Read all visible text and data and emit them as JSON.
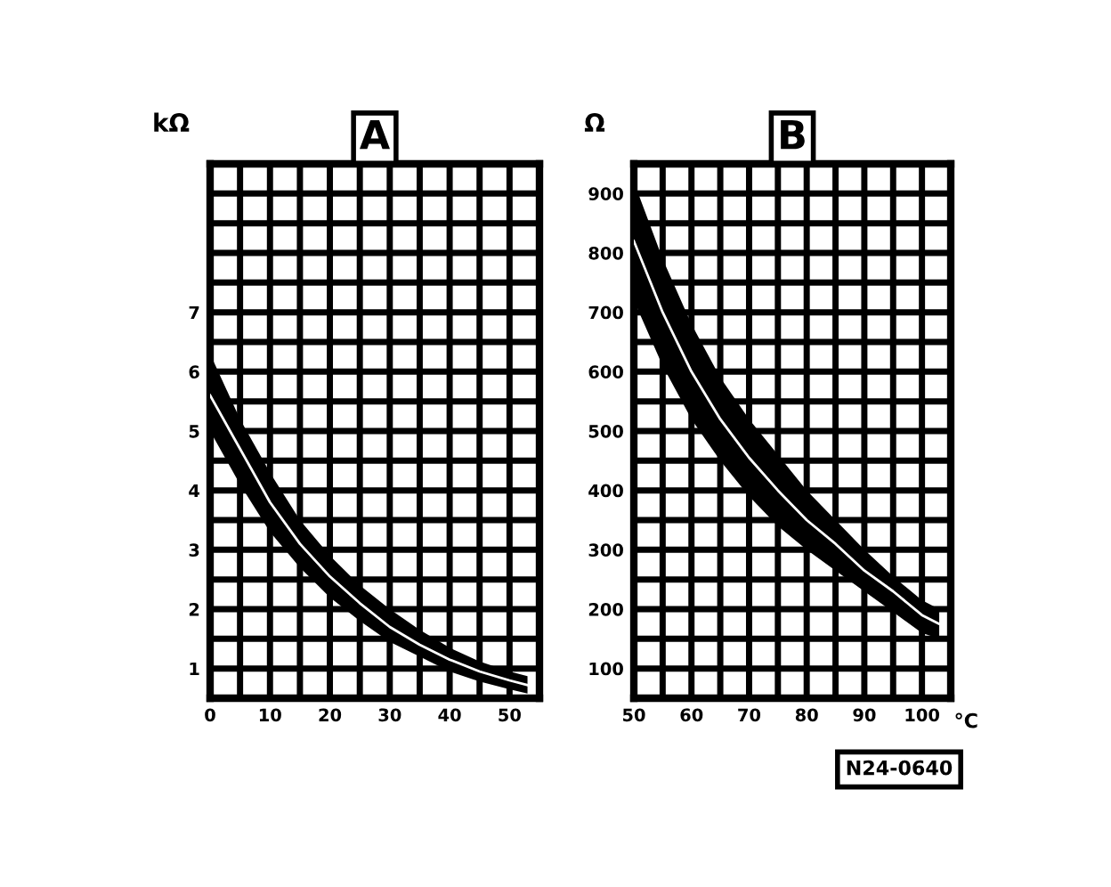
{
  "chart_data": [
    {
      "type": "line",
      "title": "A",
      "ylabel": "kΩ",
      "x": [
        0,
        5,
        10,
        15,
        20,
        25,
        30,
        35,
        40,
        45,
        50,
        53
      ],
      "series": [
        {
          "color": "#ffffff",
          "values": [
            5.6,
            4.7,
            3.8,
            3.1,
            2.55,
            2.1,
            1.7,
            1.4,
            1.15,
            0.95,
            0.8,
            0.72
          ],
          "lower": [
            5.0,
            4.1,
            3.3,
            2.7,
            2.2,
            1.8,
            1.45,
            1.2,
            0.95,
            0.78,
            0.65,
            0.58
          ],
          "upper": [
            6.3,
            5.2,
            4.3,
            3.5,
            2.9,
            2.4,
            2.0,
            1.65,
            1.35,
            1.12,
            0.95,
            0.87
          ]
        }
      ],
      "xlim": [
        0,
        55
      ],
      "ylim": [
        0.5,
        9.5
      ],
      "xticks": [
        0,
        {
          "value": 5,
          "label": null
        },
        10,
        {
          "value": 15,
          "label": null
        },
        20,
        {
          "value": 25,
          "label": null
        },
        30,
        {
          "value": 35,
          "label": null
        },
        40,
        {
          "value": 45,
          "label": null
        },
        50,
        {
          "value": 55,
          "label": null
        }
      ],
      "yticks": [
        {
          "value": 0.5,
          "label": null
        },
        1,
        {
          "value": 1.5,
          "label": null
        },
        2,
        {
          "value": 2.5,
          "label": null
        },
        3,
        {
          "value": 3.5,
          "label": null
        },
        4,
        {
          "value": 4.5,
          "label": null
        },
        5,
        {
          "value": 5.5,
          "label": null
        },
        6,
        {
          "value": 6.5,
          "label": null
        },
        7,
        {
          "value": 7.5,
          "label": null
        },
        {
          "value": 8,
          "label": null
        },
        {
          "value": 8.5,
          "label": null
        },
        {
          "value": 9,
          "label": null
        },
        {
          "value": 9.5,
          "label": null
        }
      ],
      "grid": true,
      "marker": "none"
    },
    {
      "type": "line",
      "title": "B",
      "ylabel": "Ω",
      "xlabel": "°C",
      "x": [
        50,
        55,
        60,
        65,
        70,
        75,
        80,
        85,
        90,
        95,
        100,
        103
      ],
      "series": [
        {
          "color": "#ffffff",
          "values": [
            820,
            700,
            600,
            520,
            455,
            400,
            350,
            310,
            265,
            230,
            190,
            175
          ],
          "lower": [
            720,
            610,
            520,
            450,
            390,
            340,
            300,
            265,
            230,
            195,
            160,
            150
          ],
          "upper": [
            920,
            790,
            680,
            590,
            520,
            460,
            400,
            350,
            300,
            255,
            215,
            200
          ]
        }
      ],
      "xlim": [
        50,
        105
      ],
      "ylim": [
        50,
        950
      ],
      "xticks": [
        50,
        {
          "value": 55,
          "label": null
        },
        60,
        {
          "value": 65,
          "label": null
        },
        70,
        {
          "value": 75,
          "label": null
        },
        80,
        {
          "value": 85,
          "label": null
        },
        90,
        {
          "value": 95,
          "label": null
        },
        100,
        {
          "value": 105,
          "label": null
        }
      ],
      "yticks": [
        {
          "value": 50,
          "label": null
        },
        100,
        {
          "value": 150,
          "label": null
        },
        200,
        {
          "value": 250,
          "label": null
        },
        300,
        {
          "value": 350,
          "label": null
        },
        400,
        {
          "value": 450,
          "label": null
        },
        500,
        {
          "value": 550,
          "label": null
        },
        600,
        {
          "value": 650,
          "label": null
        },
        700,
        {
          "value": 750,
          "label": null
        },
        800,
        {
          "value": 850,
          "label": null
        },
        900,
        {
          "value": 950,
          "label": null
        }
      ],
      "grid": true,
      "marker": "none",
      "annotations": [
        "N24-0640"
      ]
    }
  ]
}
